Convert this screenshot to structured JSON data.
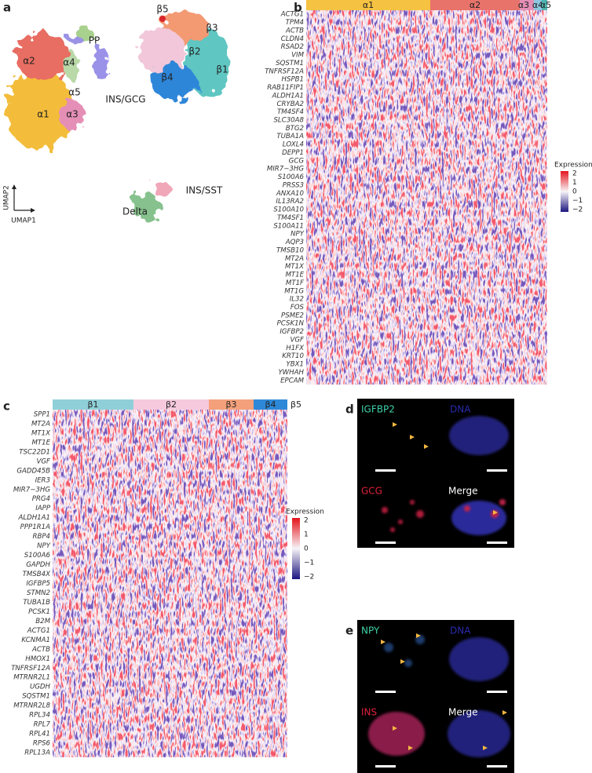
{
  "panel_a": {
    "letter": "a",
    "labels": [
      "α2",
      "α4",
      "PP",
      "α5",
      "INS/GCG",
      "α1",
      "α3",
      "β5",
      "β3",
      "β2",
      "β4",
      "β1",
      "INS/SST",
      "Delta"
    ],
    "y_axis": "UMAP2",
    "x_axis": "UMAP1"
  },
  "panel_b": {
    "letter": "b",
    "groups": [
      "α1",
      "α2",
      "α3",
      "α4",
      "α5"
    ],
    "genes": [
      "ACTG1",
      "TPM4",
      "ACTB",
      "CLDN4",
      "RSAD2",
      "VIM",
      "SQSTM1",
      "TNFRSF12A",
      "HSPB1",
      "RAB11FIP1",
      "ALDH1A1",
      "CRYBA2",
      "TM4SF4",
      "SLC30A8",
      "BTG2",
      "TUBA1A",
      "LOXL4",
      "DEPP1",
      "GCG",
      "MIR7−3HG",
      "S100A6",
      "PRSS3",
      "ANXA10",
      "IL13RA2",
      "S100A10",
      "TM4SF1",
      "S100A11",
      "NPY",
      "AQP3",
      "TMSB10",
      "MT2A",
      "MT1X",
      "MT1E",
      "MT1F",
      "MT1G",
      "IL32",
      "FOS",
      "PSME2",
      "PCSK1N",
      "IGFBP2",
      "VGF",
      "H1FX",
      "KRT10",
      "YBX1",
      "YWHAH",
      "EPCAM"
    ],
    "legend_title": "Expression",
    "legend_ticks": [
      "2",
      "1",
      "0",
      "−1",
      "−2"
    ]
  },
  "panel_c": {
    "letter": "c",
    "groups": [
      "β1",
      "β2",
      "β3",
      "β4",
      "β5"
    ],
    "genes": [
      "SPP1",
      "MT2A",
      "MT1X",
      "MT1E",
      "TSC22D1",
      "VGF",
      "GADD45B",
      "IER3",
      "MIR7−3HG",
      "PRG4",
      "IAPP",
      "ALDH1A1",
      "PPP1R1A",
      "RBP4",
      "NPY",
      "S100A6",
      "GAPDH",
      "TMSB4X",
      "IGFBP5",
      "STMN2",
      "TUBA1B",
      "PCSK1",
      "B2M",
      "ACTG1",
      "KCNMA1",
      "ACTB",
      "HMOX1",
      "TNFRSF12A",
      "MTRNR2L1",
      "UGDH",
      "SQSTM1",
      "MTRNR2L8",
      "RPL34",
      "RPL7",
      "RPL41",
      "RPS6",
      "RPL13A"
    ],
    "legend_title": "Expression",
    "legend_ticks": [
      "2",
      "1",
      "0",
      "−1",
      "−2"
    ]
  },
  "panel_d": {
    "letter": "d",
    "images": [
      "IGFBP2",
      "DNA",
      "GCG",
      "Merge"
    ]
  },
  "panel_e": {
    "letter": "e",
    "images": [
      "NPY",
      "DNA",
      "INS",
      "Merge"
    ]
  }
}
